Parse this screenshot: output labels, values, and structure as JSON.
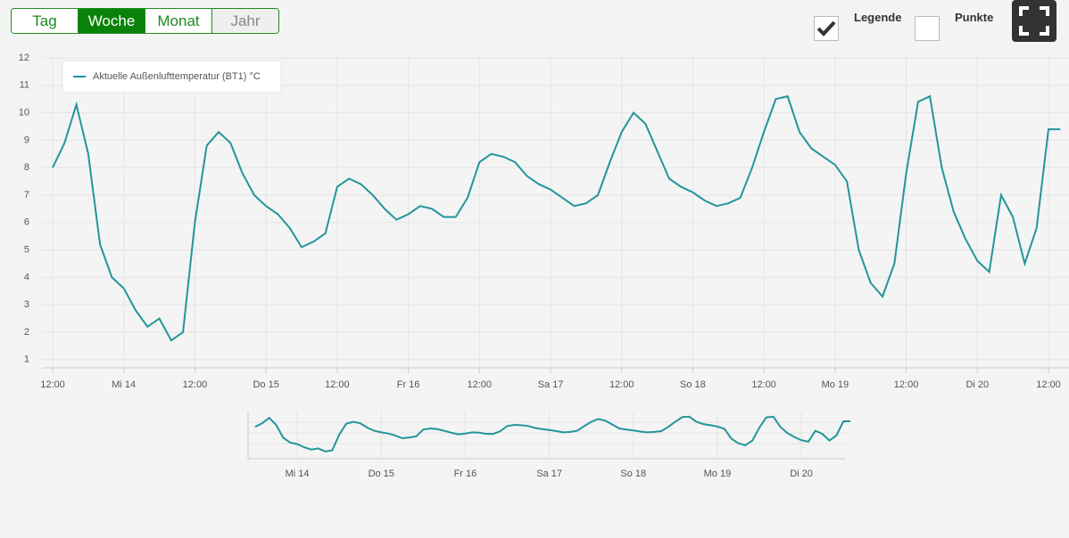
{
  "toolbar": {
    "ranges": [
      "Tag",
      "Woche",
      "Monat",
      "Jahr"
    ],
    "options": [
      {
        "label": "Legende",
        "checked": true
      },
      {
        "label": "Punkte",
        "checked": false
      }
    ]
  },
  "chart_data": {
    "type": "line",
    "categories": [
      "12:00",
      null,
      null,
      null,
      null,
      null,
      "Mi 14",
      null,
      null,
      null,
      null,
      null,
      "12:00",
      null,
      null,
      null,
      null,
      null,
      "Do 15",
      null,
      null,
      null,
      null,
      null,
      "12:00",
      null,
      null,
      null,
      null,
      null,
      "Fr 16",
      null,
      null,
      null,
      null,
      null,
      "12:00",
      null,
      null,
      null,
      null,
      null,
      "Sa 17",
      null,
      null,
      null,
      null,
      null,
      "12:00",
      null,
      null,
      null,
      null,
      null,
      "So 18",
      null,
      null,
      null,
      null,
      null,
      "12:00",
      null,
      null,
      null,
      null,
      null,
      "Mo 19",
      null,
      null,
      null,
      null,
      null,
      "12:00",
      null,
      null,
      null,
      null,
      null,
      "Di 20",
      null,
      null,
      null,
      null,
      null,
      "12:00",
      null
    ],
    "series": [
      {
        "name": "Aktuelle Außenlufttemperatur (BT1) °C",
        "color": "#23959a",
        "values": [
          8.0,
          8.9,
          10.3,
          8.5,
          5.2,
          4.0,
          3.6,
          2.8,
          2.2,
          2.5,
          1.7,
          2.0,
          6.0,
          8.8,
          9.3,
          8.9,
          7.8,
          7.0,
          6.6,
          6.3,
          5.8,
          5.1,
          5.3,
          5.6,
          7.3,
          7.6,
          7.4,
          7.0,
          6.5,
          6.1,
          6.3,
          6.6,
          6.5,
          6.2,
          6.2,
          6.9,
          8.2,
          8.5,
          8.4,
          8.2,
          7.7,
          7.4,
          7.2,
          6.9,
          6.6,
          6.7,
          7.0,
          8.2,
          9.3,
          10.0,
          9.6,
          8.6,
          7.6,
          7.3,
          7.1,
          6.8,
          6.6,
          6.7,
          6.9,
          8.0,
          9.3,
          10.5,
          10.6,
          9.3,
          8.7,
          8.4,
          8.1,
          7.5,
          5.0,
          3.8,
          3.3,
          4.5,
          7.8,
          10.4,
          10.6,
          8.0,
          6.4,
          5.4,
          4.6,
          4.2,
          7.0,
          6.2,
          4.5,
          5.8,
          9.4,
          9.4
        ]
      }
    ],
    "ylim": [
      0.7,
      12
    ],
    "yticks": [
      1,
      2,
      3,
      4,
      5,
      6,
      7,
      8,
      9,
      10,
      11,
      12
    ],
    "grid": true
  }
}
